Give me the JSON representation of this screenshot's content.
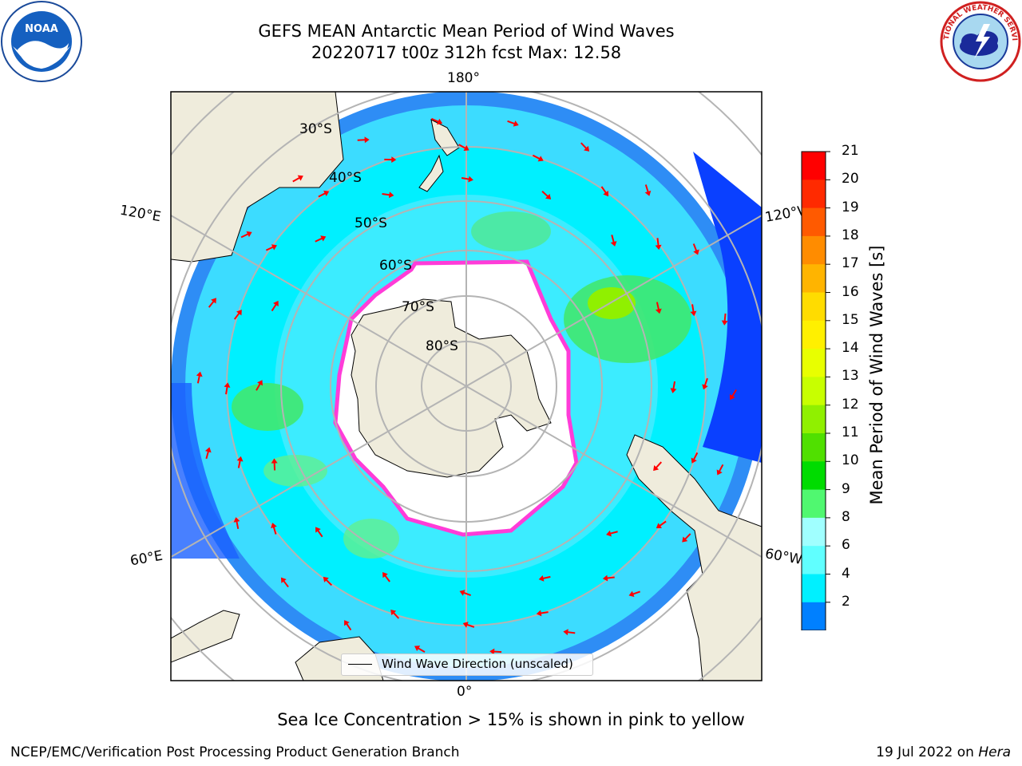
{
  "title": {
    "line1": "GEFS MEAN Antarctic Mean Period of Wind Waves",
    "line2": "20220717 t00z 312h fcst   Max: 12.58"
  },
  "logos": {
    "left": {
      "icon": "noaa-logo-icon",
      "text": "NOAA"
    },
    "right": {
      "icon": "national-weather-service-logo-icon",
      "text": "NATIONAL WEATHER SERVICE"
    }
  },
  "map": {
    "projection": "south-polar-stereographic",
    "longitude_labels": [
      "180°",
      "120°E",
      "120°W",
      "60°E",
      "60°W",
      "0°"
    ],
    "latitude_labels": [
      "30°S",
      "40°S",
      "50°S",
      "60°S",
      "70°S",
      "80°S"
    ],
    "colors": {
      "land": "#efecdc",
      "ice_shelf": "#ffffff",
      "sea_ice_edge": "#ff3cd8",
      "arrows": "#ff0000",
      "gridlines": "#b4b4b4"
    }
  },
  "colorbar": {
    "label": "Mean Period of Wind Waves [s]",
    "ticks": [
      "21",
      "20",
      "19",
      "18",
      "17",
      "16",
      "15",
      "14",
      "13",
      "12",
      "11",
      "10",
      "9",
      "8",
      "6",
      "4",
      "2"
    ],
    "colors_top_to_bottom": [
      "#ff0000",
      "#ff2a00",
      "#ff5a00",
      "#ff8c00",
      "#ffb400",
      "#ffdc00",
      "#fff000",
      "#e8ff00",
      "#c8ff00",
      "#90f000",
      "#50e000",
      "#00dc00",
      "#50f870",
      "#a0ffff",
      "#60ffff",
      "#00f0ff",
      "#0080ff"
    ],
    "under_color": "#0000ff"
  },
  "legend": {
    "label": "Wind Wave Direction (unscaled)"
  },
  "note": "Sea Ice Concentration > 15% is shown in pink to yellow",
  "footer": {
    "left": "NCEP/EMC/Verification Post Processing Product Generation Branch",
    "right_date": "19 Jul 2022 on ",
    "right_machine": "Hera"
  }
}
